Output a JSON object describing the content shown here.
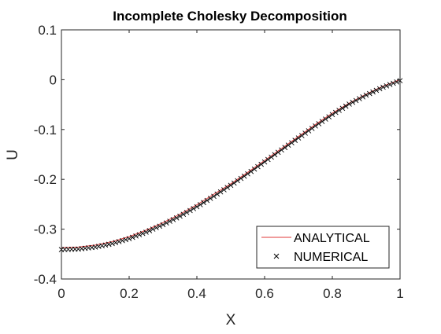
{
  "chart_data": {
    "type": "line",
    "title": "Incomplete Cholesky Decomposition",
    "xlabel": "X",
    "ylabel": "U",
    "xlim": [
      0,
      1
    ],
    "ylim": [
      -0.4,
      0.1
    ],
    "xticks": [
      0,
      0.2,
      0.4,
      0.6,
      0.8,
      1
    ],
    "xtick_labels": [
      "0",
      "0.2",
      "0.4",
      "0.6",
      "0.8",
      "1"
    ],
    "yticks": [
      -0.4,
      -0.3,
      -0.2,
      -0.1,
      0,
      0.1
    ],
    "ytick_labels": [
      "-0.4",
      "-0.3",
      "-0.2",
      "-0.1",
      "0",
      "0.1"
    ],
    "grid": false,
    "legend_position": "bottom-right",
    "x": [
      0,
      0.05,
      0.1,
      0.15,
      0.2,
      0.25,
      0.3,
      0.35,
      0.4,
      0.45,
      0.5,
      0.55,
      0.6,
      0.65,
      0.7,
      0.75,
      0.8,
      0.85,
      0.9,
      0.95,
      1
    ],
    "series": [
      {
        "name": "ANALYTICAL",
        "style": "line",
        "color": "#e03a3a",
        "values": [
          -0.337,
          -0.336,
          -0.332,
          -0.325,
          -0.315,
          -0.302,
          -0.287,
          -0.27,
          -0.251,
          -0.23,
          -0.209,
          -0.186,
          -0.162,
          -0.138,
          -0.114,
          -0.09,
          -0.067,
          -0.047,
          -0.029,
          -0.013,
          0
        ]
      },
      {
        "name": "NUMERICAL",
        "style": "markers",
        "marker": "x",
        "color": "#000000",
        "marker_count": 101,
        "values": [
          -0.341,
          -0.34,
          -0.336,
          -0.329,
          -0.319,
          -0.306,
          -0.291,
          -0.274,
          -0.255,
          -0.234,
          -0.212,
          -0.189,
          -0.165,
          -0.141,
          -0.117,
          -0.093,
          -0.07,
          -0.049,
          -0.031,
          -0.015,
          -0.002
        ]
      }
    ]
  }
}
